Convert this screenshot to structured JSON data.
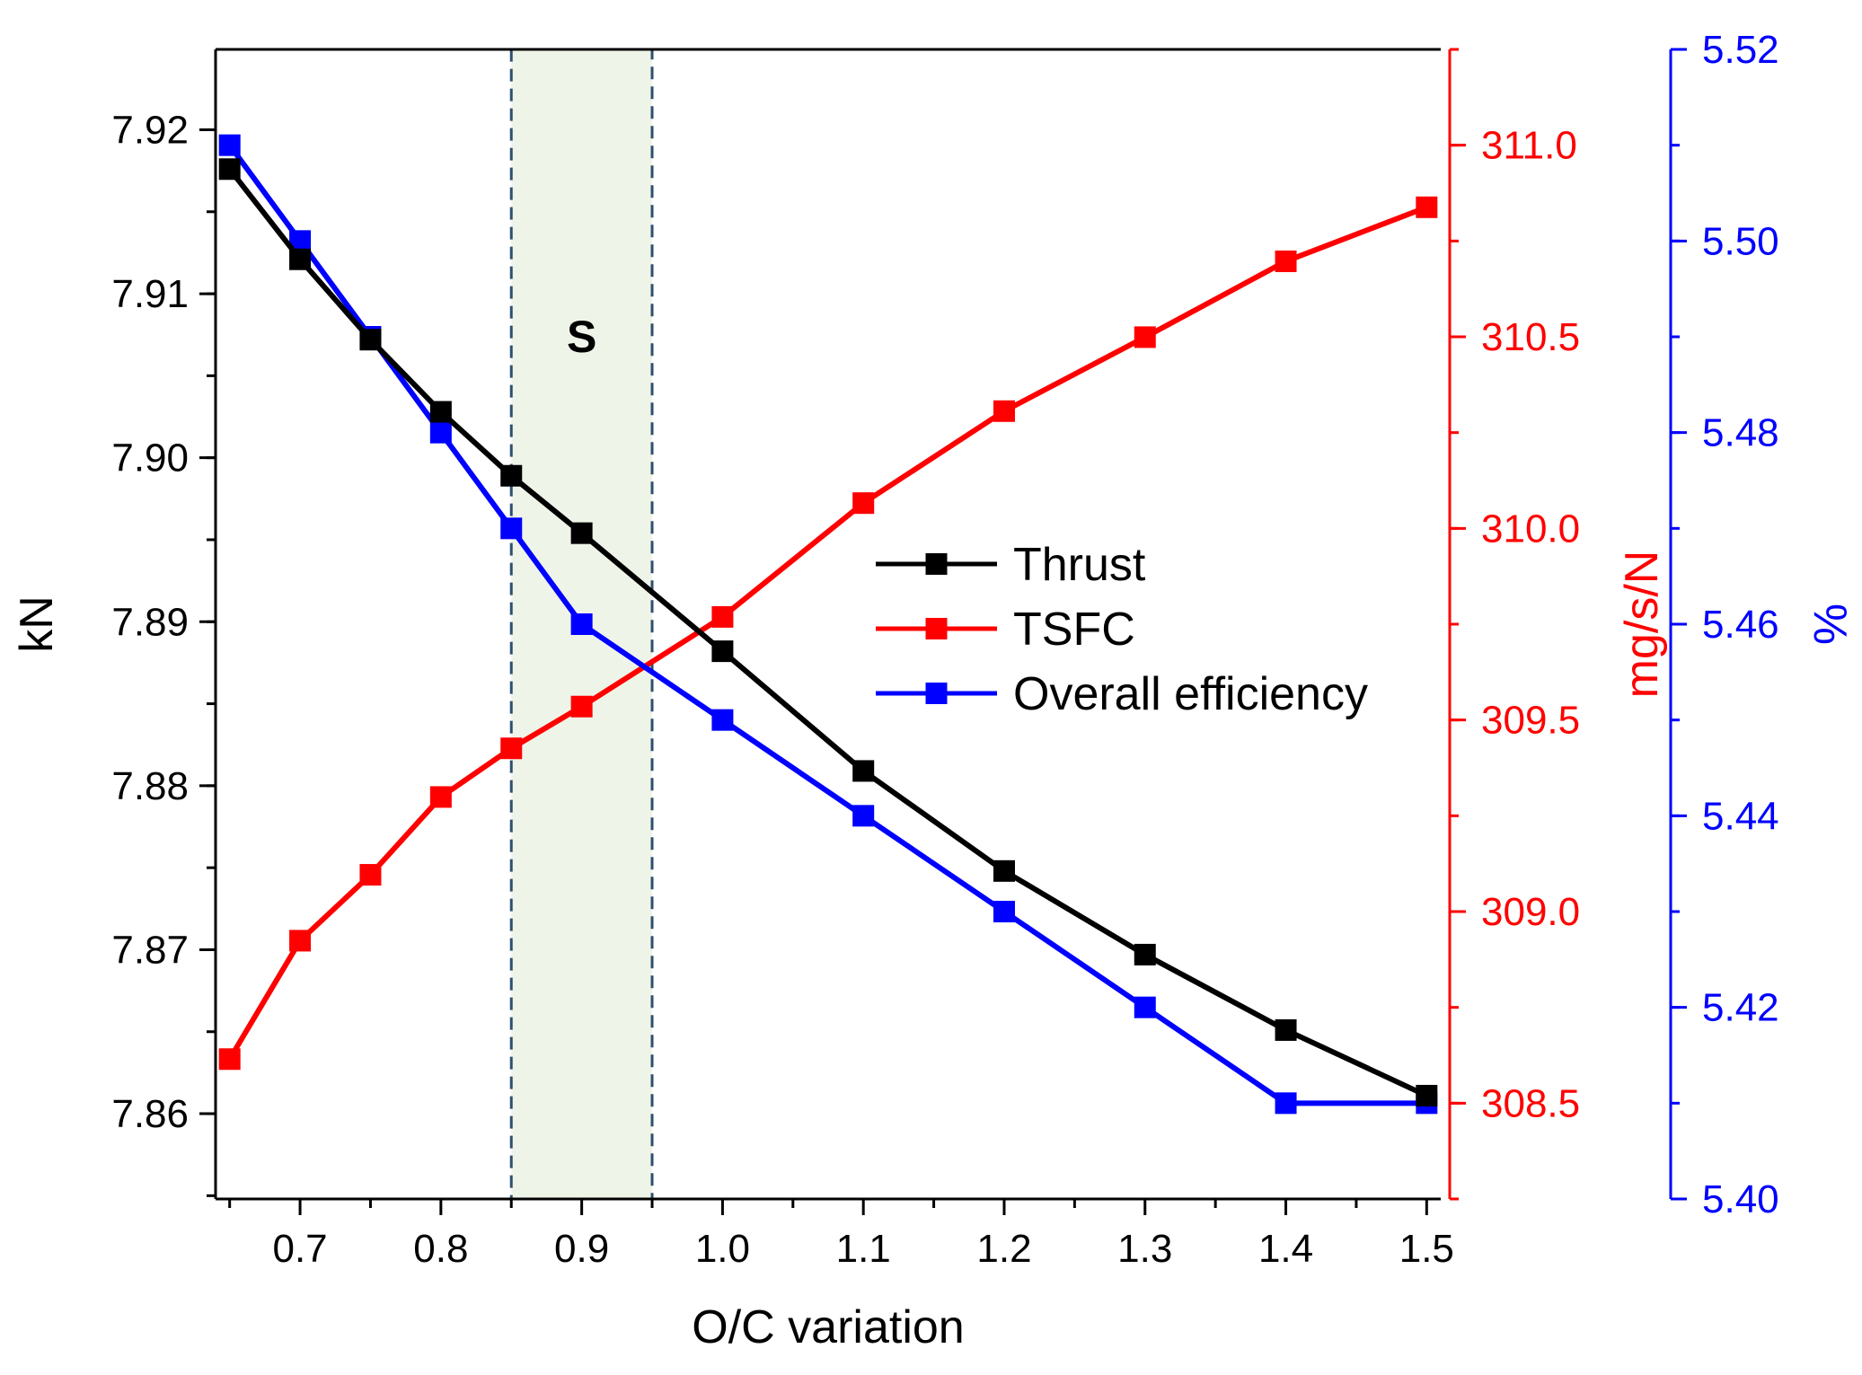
{
  "chart_data": {
    "type": "line",
    "title": "",
    "xlabel": "O/C variation",
    "x": [
      0.65,
      0.7,
      0.75,
      0.8,
      0.85,
      0.9,
      1.0,
      1.1,
      1.2,
      1.3,
      1.4,
      1.5
    ],
    "xlim": [
      0.64,
      1.51
    ],
    "xticks": [
      0.7,
      0.8,
      0.9,
      1.0,
      1.1,
      1.2,
      1.3,
      1.4,
      1.5
    ],
    "xtick_labels": [
      "0.7",
      "0.8",
      "0.9",
      "1.0",
      "1.1",
      "1.2",
      "1.3",
      "1.4",
      "1.5"
    ],
    "series": [
      {
        "name": "Thrust",
        "axis": "left",
        "color": "#000000",
        "values": [
          7.9176,
          7.9121,
          7.9072,
          7.9028,
          7.8989,
          7.8954,
          7.8882,
          7.8809,
          7.8748,
          7.8697,
          7.8651,
          7.8611
        ]
      },
      {
        "name": "TSFC",
        "axis": "right",
        "color": "#ff0000",
        "values": [
          308.615,
          308.924,
          309.096,
          309.299,
          309.426,
          309.535,
          309.769,
          310.066,
          310.306,
          310.499,
          310.697,
          310.838
        ]
      },
      {
        "name": "Overall efficiency",
        "axis": "right2",
        "color": "#0000ff",
        "values": [
          5.51,
          5.5,
          5.49,
          5.48,
          5.47,
          5.46,
          5.45,
          5.44,
          5.43,
          5.42,
          5.41,
          5.41
        ]
      }
    ],
    "left_axis": {
      "label": "kN",
      "color": "#000000",
      "ylim": [
        7.8548,
        7.9249
      ],
      "ticks": [
        7.86,
        7.87,
        7.88,
        7.89,
        7.9,
        7.91,
        7.92
      ],
      "tick_labels": [
        "7.86",
        "7.87",
        "7.88",
        "7.89",
        "7.90",
        "7.91",
        "7.92"
      ]
    },
    "right_axis": {
      "label": "mg/s/N",
      "color": "#ff0000",
      "ylim": [
        308.25,
        311.25
      ],
      "ticks": [
        308.5,
        309.0,
        309.5,
        310.0,
        310.5,
        311.0
      ],
      "tick_labels": [
        "308.5",
        "309.0",
        "309.5",
        "310.0",
        "310.5",
        "311.0"
      ]
    },
    "right2_axis": {
      "label": "%",
      "color": "#0000ff",
      "ylim": [
        5.4,
        5.52
      ],
      "ticks": [
        5.4,
        5.42,
        5.44,
        5.46,
        5.48,
        5.5,
        5.52
      ],
      "tick_labels": [
        "5.40",
        "5.42",
        "5.44",
        "5.46",
        "5.48",
        "5.50",
        "5.52"
      ]
    },
    "region": {
      "label": "S",
      "x_start": 0.85,
      "x_end": 0.95,
      "fill_color": "#eef4e8"
    },
    "legend": {
      "placement": "center-right",
      "entries": [
        "Thrust",
        "TSFC",
        "Overall efficiency"
      ]
    },
    "grid": false
  }
}
